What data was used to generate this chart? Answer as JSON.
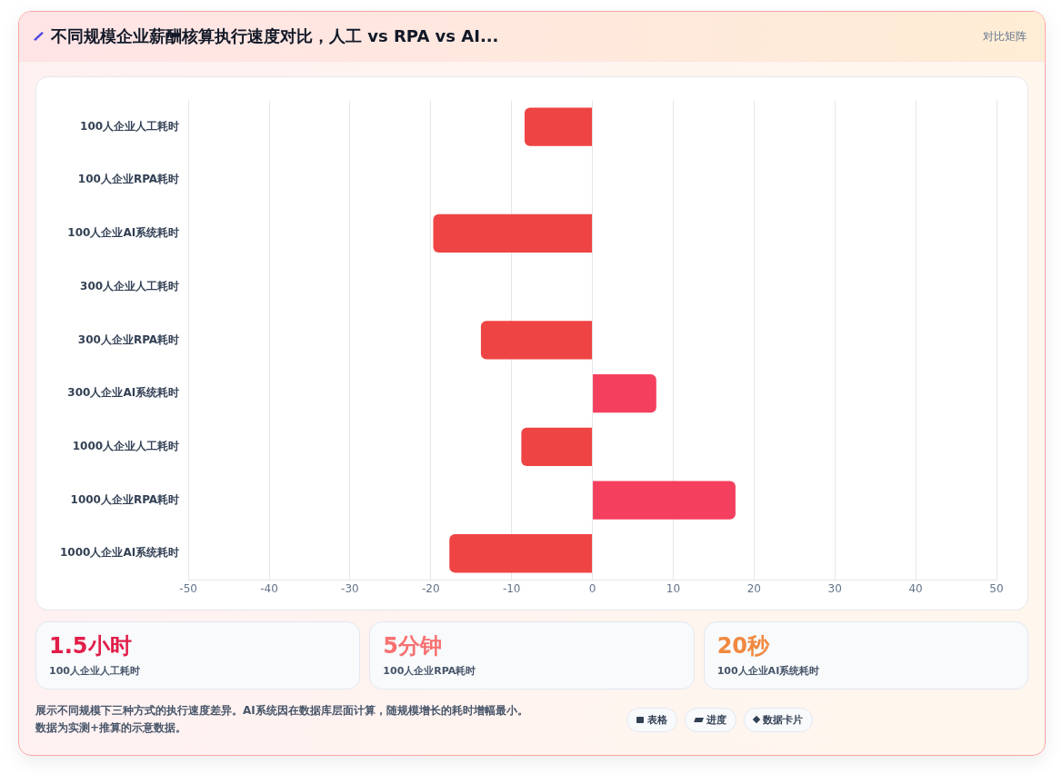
{
  "chart_data": [
    {
      "type": "bar",
      "orientation": "horizontal",
      "title": "不同规模企业薪酬核算执行速度对比，人工 vs RPA vs AI...",
      "categories": [
        "100人企业人工耗时",
        "100人企业RPA耗时",
        "100人企业AI系统耗时",
        "300人企业人工耗时",
        "300人企业RPA耗时",
        "300人企业AI系统耗时",
        "1000人企业人工耗时",
        "1000人企业RPA耗时",
        "1000人企业AI系统耗时"
      ],
      "values": [
        -8.4,
        0,
        -19.7,
        0,
        -13.8,
        7.9,
        -8.8,
        17.7,
        -17.7
      ],
      "colors": [
        "#ef4444",
        "#ef4444",
        "#ef4444",
        "#ef4444",
        "#ef4444",
        "#f43f5e",
        "#ef4444",
        "#f43f5e",
        "#ef4444"
      ],
      "xlim": [
        -50,
        50
      ],
      "xticks": [
        -50,
        -40,
        -30,
        -20,
        -10,
        0,
        10,
        20,
        30,
        40,
        50
      ],
      "grid": "x",
      "legend": false,
      "annotations": [
        "对比矩阵",
        "展示不同规模下三种方式的执行速度差异。AI系统因在数据库层面计算，随规模增长的耗时增幅最小。",
        "数据为实测+推算的示意数据。",
        "表格",
        "进度",
        "数据卡片"
      ]
    },
    {
      "type": "other",
      "categories": [
        "100人企业人工耗时",
        "100人企业RPA耗时",
        "100人企业AI系统耗时"
      ],
      "value_labels": [
        "1.5小时",
        "5分钟",
        "20秒"
      ]
    }
  ]
}
